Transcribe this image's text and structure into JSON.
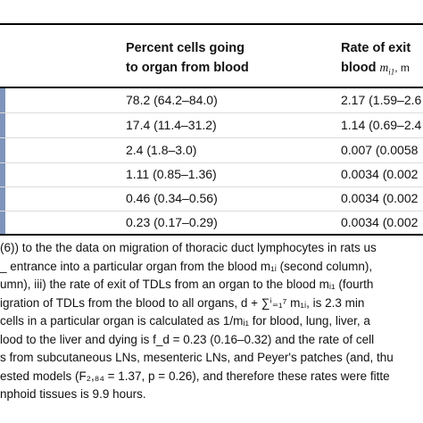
{
  "table": {
    "header": {
      "col1_line1": "Percent cells going",
      "col1_line2": "to organ from blood",
      "col2_line1": "Rate of exit",
      "col2_line2": "blood",
      "col2_symbol": "m",
      "col2_subscript": "i1",
      "col2_trail": ", m"
    },
    "rows": [
      {
        "percent": "78.2 (64.2–84.0)",
        "rate": "2.17 (1.59–2.6"
      },
      {
        "percent": "17.4 (11.4–31.2)",
        "rate": "1.14 (0.69–2.4"
      },
      {
        "percent": "2.4 (1.8–3.0)",
        "rate": "0.007 (0.0058"
      },
      {
        "percent": "1.11 (0.85–1.36)",
        "rate": "0.0034 (0.002"
      },
      {
        "percent": "0.46 (0.34–0.56)",
        "rate": "0.0034 (0.002"
      },
      {
        "percent": "0.23 (0.17–0.29)",
        "rate": "0.0034 (0.002"
      }
    ]
  },
  "footnote": {
    "lines": [
      "(6)) to the the data on migration of thoracic duct lymphocytes in rats us",
      "_ entrance into a particular organ from the blood m₁ᵢ (second column),",
      "umn), iii) the rate of exit of TDLs from an organ to the blood mᵢ₁ (fourth",
      "igration of TDLs from the blood to all organs, d + ∑ⁱ₌₁⁷ m₁ᵢ, is 2.3 min",
      " cells in a particular organ is calculated as 1/mᵢ₁ for blood, lung, liver, a",
      "lood to the liver and dying is f_d = 0.23 (0.16–0.32) and the rate of cell",
      "s from subcutaneous LNs, mesenteric LNs, and Peyer's patches (and, thu",
      "ested models (F₂,₈₄ = 1.37, p = 0.26), and therefore these rates were fitte",
      "nphoid tissues is 9.9 hours."
    ]
  },
  "colors": {
    "edge": "#7e94bb",
    "rule": "#000000",
    "separator": "#dcdcdc"
  }
}
